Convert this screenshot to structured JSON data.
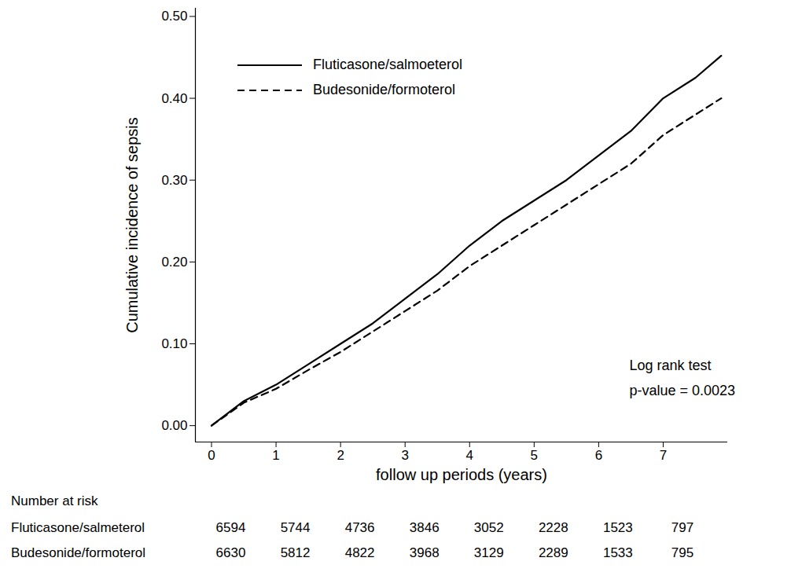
{
  "chart_data": {
    "type": "line",
    "ylabel": "Cumulative incidence of sepsis",
    "xlabel": "follow up periods (years)",
    "xlim": [
      -0.25,
      8
    ],
    "ylim": [
      -0.02,
      0.51
    ],
    "xticks": [
      0,
      1,
      2,
      3,
      4,
      5,
      6,
      7
    ],
    "yticks": [
      {
        "value": 0,
        "label": "0.00"
      },
      {
        "value": 0.1,
        "label": "0.10"
      },
      {
        "value": 0.2,
        "label": "0.20"
      },
      {
        "value": 0.3,
        "label": "0.30"
      },
      {
        "value": 0.4,
        "label": "0.40"
      },
      {
        "value": 0.5,
        "label": "0.50"
      }
    ],
    "grid": false,
    "legend": "top-left",
    "x": [
      0,
      0.5,
      1,
      1.5,
      2,
      2.5,
      3,
      3.5,
      4,
      4.5,
      5,
      5.5,
      6,
      6.5,
      7,
      7.5,
      7.9
    ],
    "series": [
      {
        "name": "Fluticasone/salmoeterol",
        "color": "#000000",
        "line_style": "solid",
        "values": [
          0,
          0.03,
          0.05,
          0.075,
          0.1,
          0.125,
          0.155,
          0.185,
          0.22,
          0.25,
          0.275,
          0.3,
          0.33,
          0.36,
          0.4,
          0.425,
          0.452
        ]
      },
      {
        "name": "Budesonide/formoterol",
        "color": "#000000",
        "line_style": "dashed",
        "values": [
          0,
          0.028,
          0.045,
          0.068,
          0.09,
          0.115,
          0.14,
          0.165,
          0.195,
          0.22,
          0.245,
          0.27,
          0.295,
          0.32,
          0.355,
          0.38,
          0.4
        ]
      }
    ],
    "annotations": [
      "Log rank test",
      "p-value = 0.0023"
    ],
    "risk_table": {
      "title": "Number at risk",
      "times": [
        0,
        1,
        2,
        3,
        4,
        5,
        6,
        7
      ],
      "rows": [
        {
          "name": "Fluticasone/salmeterol",
          "values": [
            6594,
            5744,
            4736,
            3846,
            3052,
            2228,
            1523,
            797
          ]
        },
        {
          "name": "Budesonide/formoterol",
          "values": [
            6630,
            5812,
            4822,
            3968,
            3129,
            2289,
            1533,
            795
          ]
        }
      ]
    }
  }
}
